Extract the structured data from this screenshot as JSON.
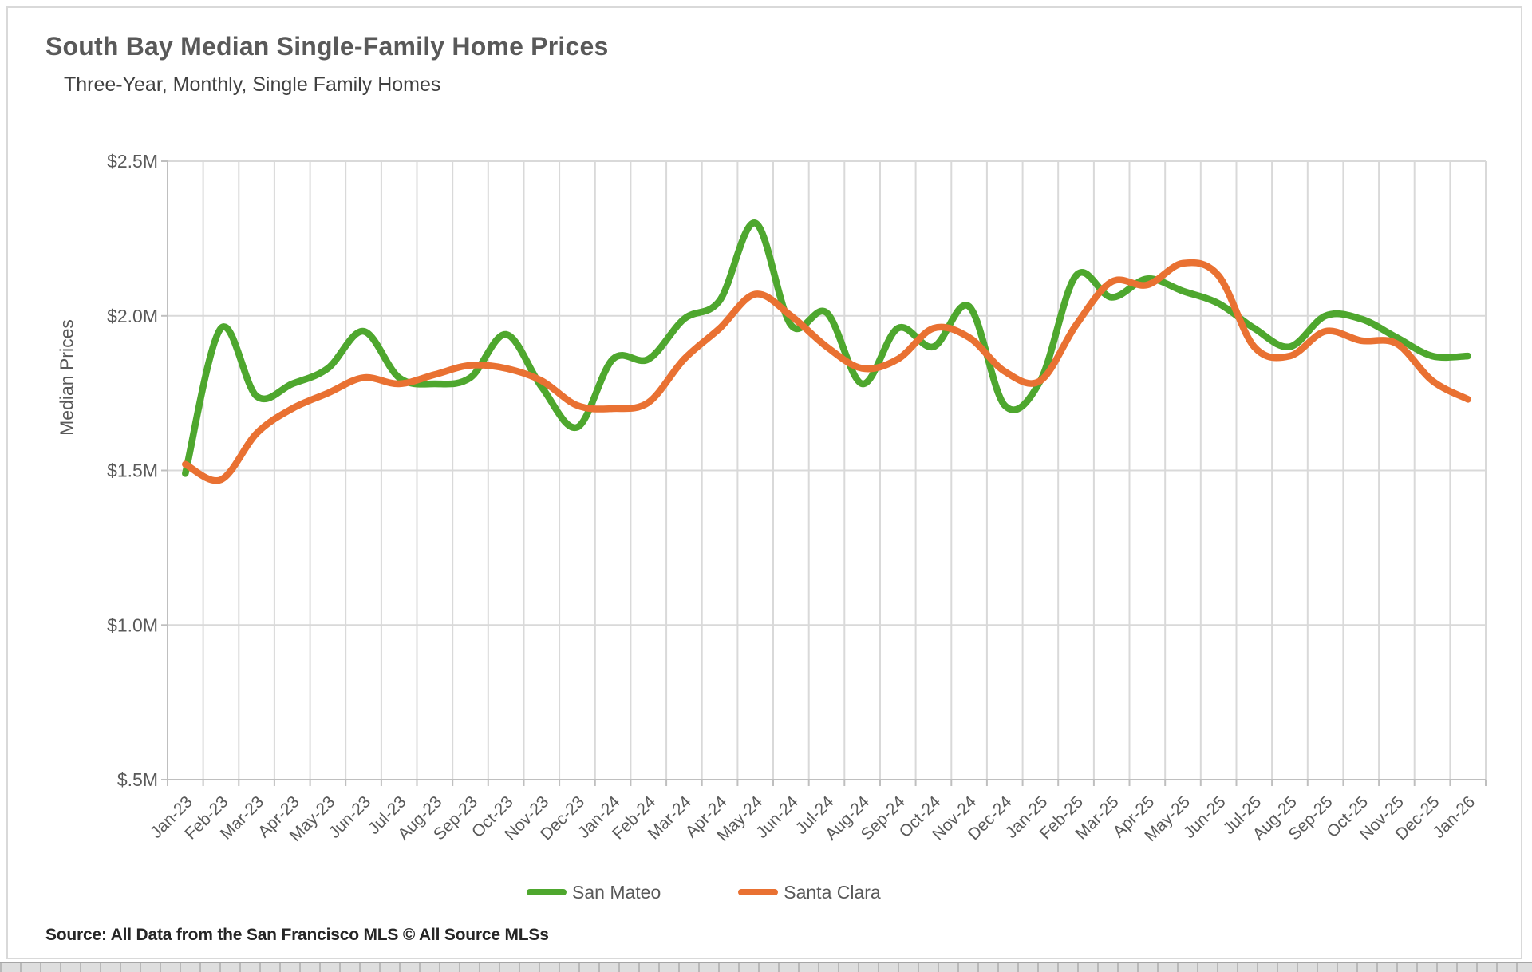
{
  "header": {
    "title": "South Bay Median Single-Family Home Prices",
    "subtitle": "Three-Year, Monthly, Single Family Homes"
  },
  "source_note": "Source: All Data from the San Francisco MLS © All Source MLSs",
  "legend": {
    "items": [
      {
        "label": "San Mateo",
        "color": "#4EA72E"
      },
      {
        "label": "Santa Clara",
        "color": "#E97132"
      }
    ]
  },
  "chart_data": {
    "type": "line",
    "title": "South Bay Median Single-Family Home Prices",
    "subtitle": "Three-Year, Monthly, Single Family Homes",
    "xlabel": "",
    "ylabel": "Median Prices",
    "units": "millions USD",
    "ylim": [
      0.5,
      2.5
    ],
    "grid": true,
    "legend_position": "bottom",
    "y_ticks": [
      {
        "value": 0.5,
        "label": "$.5M"
      },
      {
        "value": 1.0,
        "label": "$1.0M"
      },
      {
        "value": 1.5,
        "label": "$1.5M"
      },
      {
        "value": 2.0,
        "label": "$2.0M"
      },
      {
        "value": 2.5,
        "label": "$2.5M"
      }
    ],
    "categories": [
      "Jan-23",
      "Feb-23",
      "Mar-23",
      "Apr-23",
      "May-23",
      "Jun-23",
      "Jul-23",
      "Aug-23",
      "Sep-23",
      "Oct-23",
      "Nov-23",
      "Dec-23",
      "Jan-24",
      "Feb-24",
      "Mar-24",
      "Apr-24",
      "May-24",
      "Jun-24",
      "Jul-24",
      "Aug-24",
      "Sep-24",
      "Oct-24",
      "Nov-24",
      "Dec-24",
      "Jan-25",
      "Feb-25",
      "Mar-25",
      "Apr-25",
      "May-25",
      "Jun-25",
      "Jul-25",
      "Aug-25",
      "Sep-25",
      "Oct-25",
      "Nov-25",
      "Dec-25",
      "Jan-26"
    ],
    "series": [
      {
        "name": "San Mateo",
        "color": "#4EA72E",
        "values": [
          1.49,
          1.96,
          1.74,
          1.78,
          1.83,
          1.95,
          1.8,
          1.78,
          1.8,
          1.94,
          1.77,
          1.64,
          1.86,
          1.86,
          1.99,
          2.05,
          2.3,
          1.97,
          2.01,
          1.78,
          1.96,
          1.9,
          2.03,
          1.71,
          1.79,
          2.13,
          2.06,
          2.12,
          2.08,
          2.04,
          1.96,
          1.9,
          2.0,
          1.99,
          1.93,
          1.87,
          1.87
        ]
      },
      {
        "name": "Santa Clara",
        "color": "#E97132",
        "values": [
          1.52,
          1.47,
          1.62,
          1.7,
          1.75,
          1.8,
          1.78,
          1.81,
          1.84,
          1.83,
          1.79,
          1.71,
          1.7,
          1.72,
          1.86,
          1.96,
          2.07,
          2.0,
          1.9,
          1.83,
          1.86,
          1.96,
          1.93,
          1.82,
          1.79,
          1.97,
          2.11,
          2.1,
          2.17,
          2.13,
          1.9,
          1.87,
          1.95,
          1.92,
          1.91,
          1.79,
          1.73
        ]
      }
    ]
  }
}
